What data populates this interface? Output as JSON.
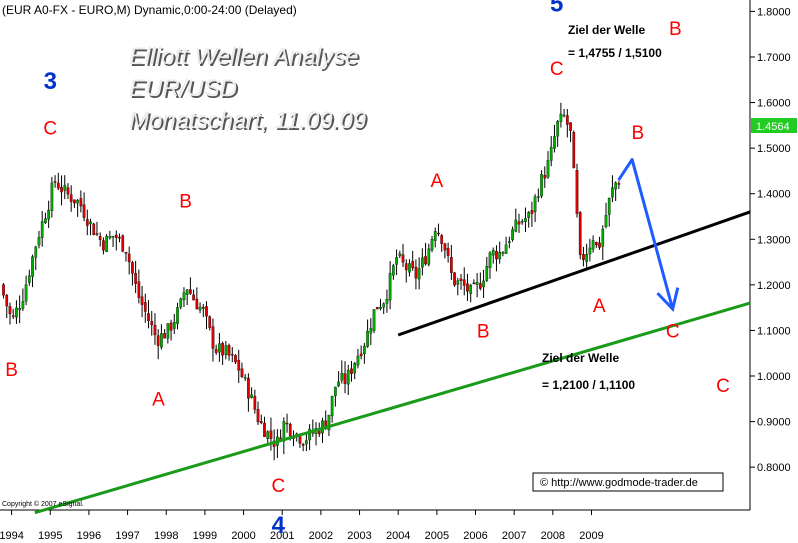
{
  "header": {
    "symbol_line": "(EUR A0-FX - EURO,M) Dynamic,0:00-24:00 (Delayed)"
  },
  "watermark": {
    "line1": "Elliott Wellen Analyse",
    "line2": "EUR/USD",
    "line3": "Monatschart, 11.09.09"
  },
  "copyright": "Copyright © 2007 eSignal.",
  "source_box": "© http://www.godmode-trader.de",
  "targets": {
    "upper": {
      "label": "Ziel der Welle",
      "wave": "B",
      "value": "= 1,4755 / 1,5100"
    },
    "lower": {
      "label": "Ziel der Welle",
      "wave": "C",
      "value": "= 1,2100 / 1,1100"
    }
  },
  "colors": {
    "wave_letter": "#ff0000",
    "wave_number": "#0033cc",
    "up_candle": "#00aa00",
    "down_candle": "#dd0000",
    "trend_green": "#1a9a1a",
    "trend_black": "#000000",
    "projection_arrow": "#1e5cff",
    "price_badge": "#22cc22"
  },
  "chart_data": {
    "type": "candlestick",
    "title": "",
    "xlabel": "",
    "ylabel": "",
    "xlim": [
      1993.7,
      2013.1
    ],
    "ylim": [
      0.706,
      1.825
    ],
    "x_ticks": [
      "1994",
      "1995",
      "1996",
      "1997",
      "1998",
      "1999",
      "2000",
      "2001",
      "2002",
      "2003",
      "2004",
      "2005",
      "2006",
      "2007",
      "2008",
      "2009"
    ],
    "y_ticks": [
      "1.8000",
      "1.7000",
      "1.6000",
      "1.5000",
      "1.4000",
      "1.3000",
      "1.2000",
      "1.1000",
      "1.0000",
      "0.9000",
      "0.8000"
    ],
    "last_price": "1.4564",
    "grid": false,
    "price_path": [
      [
        1993.75,
        1.2
      ],
      [
        1994.05,
        1.12
      ],
      [
        1994.35,
        1.18
      ],
      [
        1994.7,
        1.3
      ],
      [
        1995.0,
        1.38
      ],
      [
        1995.15,
        1.43
      ],
      [
        1995.45,
        1.4
      ],
      [
        1995.8,
        1.38
      ],
      [
        1996.1,
        1.33
      ],
      [
        1996.4,
        1.29
      ],
      [
        1996.7,
        1.31
      ],
      [
        1997.0,
        1.28
      ],
      [
        1997.3,
        1.18
      ],
      [
        1997.6,
        1.12
      ],
      [
        1997.8,
        1.08
      ],
      [
        1998.1,
        1.1
      ],
      [
        1998.4,
        1.15
      ],
      [
        1998.55,
        1.2
      ],
      [
        1998.75,
        1.17
      ],
      [
        1999.0,
        1.14
      ],
      [
        1999.3,
        1.06
      ],
      [
        1999.6,
        1.05
      ],
      [
        1999.9,
        1.02
      ],
      [
        2000.2,
        0.96
      ],
      [
        2000.45,
        0.9
      ],
      [
        2000.7,
        0.87
      ],
      [
        2000.9,
        0.85
      ],
      [
        2001.1,
        0.9
      ],
      [
        2001.3,
        0.88
      ],
      [
        2001.6,
        0.86
      ],
      [
        2001.9,
        0.88
      ],
      [
        2002.2,
        0.9
      ],
      [
        2002.45,
        0.99
      ],
      [
        2002.7,
        0.99
      ],
      [
        2002.95,
        1.04
      ],
      [
        2003.2,
        1.08
      ],
      [
        2003.45,
        1.15
      ],
      [
        2003.7,
        1.17
      ],
      [
        2004.0,
        1.26
      ],
      [
        2004.2,
        1.24
      ],
      [
        2004.5,
        1.22
      ],
      [
        2004.8,
        1.27
      ],
      [
        2005.0,
        1.33
      ],
      [
        2005.2,
        1.3
      ],
      [
        2005.45,
        1.21
      ],
      [
        2005.7,
        1.2
      ],
      [
        2005.95,
        1.18
      ],
      [
        2006.2,
        1.21
      ],
      [
        2006.45,
        1.27
      ],
      [
        2006.7,
        1.27
      ],
      [
        2006.95,
        1.31
      ],
      [
        2007.2,
        1.34
      ],
      [
        2007.45,
        1.35
      ],
      [
        2007.7,
        1.42
      ],
      [
        2007.95,
        1.47
      ],
      [
        2008.15,
        1.55
      ],
      [
        2008.35,
        1.57
      ],
      [
        2008.5,
        1.53
      ],
      [
        2008.62,
        1.4
      ],
      [
        2008.75,
        1.25
      ],
      [
        2008.95,
        1.28
      ],
      [
        2009.1,
        1.31
      ],
      [
        2009.2,
        1.27
      ],
      [
        2009.35,
        1.33
      ],
      [
        2009.55,
        1.4
      ],
      [
        2009.7,
        1.43
      ]
    ],
    "trendlines": [
      {
        "name": "green",
        "points": [
          [
            1994.6,
            0.7
          ],
          [
            2013.1,
            1.16
          ]
        ]
      },
      {
        "name": "black",
        "points": [
          [
            2004.0,
            1.09
          ],
          [
            2013.1,
            1.36
          ]
        ]
      },
      {
        "name": "projection",
        "points": [
          [
            2009.7,
            1.43
          ],
          [
            2010.05,
            1.475
          ],
          [
            2011.1,
            1.147
          ]
        ]
      }
    ],
    "annotations": [
      {
        "text": "3",
        "kind": "number",
        "x": 1995.0,
        "y": 1.63
      },
      {
        "text": "C",
        "kind": "letter",
        "x": 1995.0,
        "y": 1.53
      },
      {
        "text": "B",
        "kind": "letter",
        "x": 1994.0,
        "y": 1.0
      },
      {
        "text": "B",
        "kind": "letter",
        "x": 1998.5,
        "y": 1.37
      },
      {
        "text": "A",
        "kind": "letter",
        "x": 1997.8,
        "y": 0.935
      },
      {
        "text": "C",
        "kind": "letter",
        "x": 2000.9,
        "y": 0.745
      },
      {
        "text": "4",
        "kind": "number",
        "x": 2000.9,
        "y": 0.655
      },
      {
        "text": "A",
        "kind": "letter",
        "x": 2005.0,
        "y": 1.415
      },
      {
        "text": "B",
        "kind": "letter",
        "x": 2006.2,
        "y": 1.085
      },
      {
        "text": "5",
        "kind": "number",
        "x": 2008.1,
        "y": 1.8
      },
      {
        "text": "C",
        "kind": "letter",
        "x": 2008.1,
        "y": 1.66
      },
      {
        "text": "A",
        "kind": "letter",
        "x": 2009.2,
        "y": 1.14
      },
      {
        "text": "B",
        "kind": "letter",
        "x": 2010.2,
        "y": 1.52
      },
      {
        "text": "C",
        "kind": "letter",
        "x": 2011.1,
        "y": 1.085
      },
      {
        "text": "C",
        "kind": "letter",
        "x": 2012.4,
        "y": 0.965
      }
    ]
  }
}
